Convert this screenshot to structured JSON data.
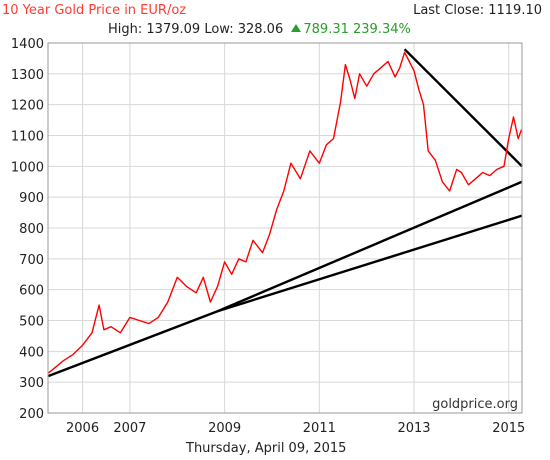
{
  "header": {
    "title": "10 Year Gold Price in EUR/oz",
    "last_close_label": "Last Close:",
    "last_close_value": "1119.10",
    "high_label": "High:",
    "high_value": "1379.09",
    "low_label": "Low:",
    "low_value": "328.06",
    "change_value": "789.31",
    "change_pct": "239.34%",
    "up_color": "#2a9d2a"
  },
  "footer": {
    "date": "Thursday, April 09, 2015",
    "watermark": "goldprice.org"
  },
  "chart_data": {
    "type": "line",
    "ylim": [
      200,
      1400
    ],
    "yticks": [
      "200",
      "300",
      "400",
      "500",
      "600",
      "700",
      "800",
      "900",
      "1000",
      "1100",
      "1200",
      "1300",
      "1400"
    ],
    "xlim": [
      2005.27,
      2015.28
    ],
    "xticks": [
      {
        "label": "2006",
        "value": 2006
      },
      {
        "label": "2007",
        "value": 2007
      },
      {
        "label": "2009",
        "value": 2009
      },
      {
        "label": "2011",
        "value": 2011
      },
      {
        "label": "2013",
        "value": 2013
      },
      {
        "label": "2015",
        "value": 2015
      }
    ],
    "grid": true,
    "series": [
      {
        "color": "#ff0000",
        "x": [
          2005.28,
          2005.4,
          2005.6,
          2005.8,
          2006.0,
          2006.2,
          2006.35,
          2006.45,
          2006.6,
          2006.8,
          2007.0,
          2007.2,
          2007.4,
          2007.6,
          2007.8,
          2008.0,
          2008.2,
          2008.4,
          2008.55,
          2008.7,
          2008.85,
          2009.0,
          2009.15,
          2009.3,
          2009.45,
          2009.6,
          2009.8,
          2009.95,
          2010.1,
          2010.25,
          2010.4,
          2010.6,
          2010.8,
          2011.0,
          2011.15,
          2011.3,
          2011.45,
          2011.55,
          2011.65,
          2011.75,
          2011.85,
          2012.0,
          2012.15,
          2012.3,
          2012.45,
          2012.6,
          2012.7,
          2012.8,
          2012.9,
          2013.0,
          2013.1,
          2013.2,
          2013.3,
          2013.45,
          2013.6,
          2013.75,
          2013.9,
          2014.0,
          2014.15,
          2014.3,
          2014.45,
          2014.6,
          2014.75,
          2014.9,
          2015.0,
          2015.1,
          2015.2,
          2015.27
        ],
        "y": [
          330,
          345,
          370,
          390,
          420,
          460,
          550,
          470,
          480,
          460,
          510,
          500,
          490,
          510,
          560,
          640,
          610,
          590,
          640,
          560,
          610,
          690,
          650,
          700,
          690,
          760,
          720,
          780,
          860,
          920,
          1010,
          960,
          1050,
          1010,
          1070,
          1090,
          1210,
          1330,
          1280,
          1220,
          1300,
          1260,
          1300,
          1320,
          1340,
          1290,
          1320,
          1370,
          1340,
          1310,
          1250,
          1200,
          1050,
          1020,
          950,
          920,
          990,
          980,
          940,
          960,
          980,
          970,
          990,
          1000,
          1090,
          1160,
          1090,
          1119
        ]
      }
    ],
    "trendlines": [
      {
        "x": [
          2005.28,
          2008.85
        ],
        "y": [
          320,
          530
        ]
      },
      {
        "x": [
          2008.85,
          2015.28
        ],
        "y": [
          530,
          950
        ]
      },
      {
        "x": [
          2008.85,
          2015.28
        ],
        "y": [
          530,
          840
        ]
      },
      {
        "x": [
          2012.8,
          2015.28
        ],
        "y": [
          1380,
          1000
        ]
      }
    ]
  }
}
